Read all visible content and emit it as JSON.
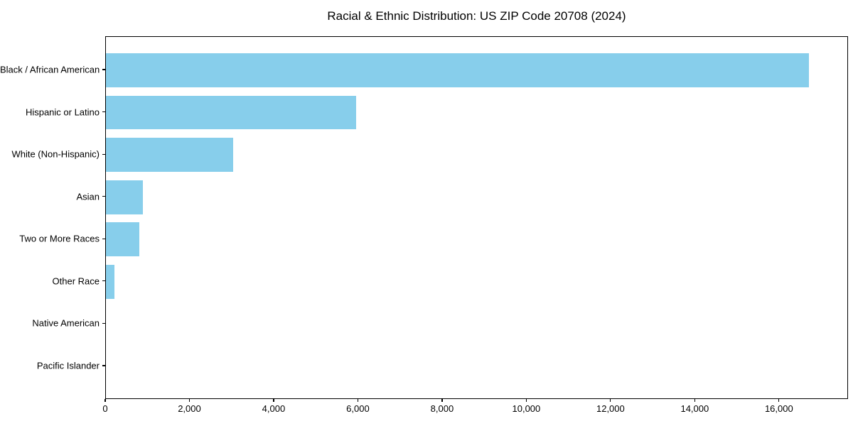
{
  "page": {
    "background": "#ffffff"
  },
  "chart_data": {
    "type": "bar",
    "orientation": "horizontal",
    "title": "Racial & Ethnic Distribution: US ZIP Code 20708 (2024)",
    "xlabel": "",
    "ylabel": "",
    "categories": [
      "Black / African American",
      "Hispanic or Latino",
      "White (Non-Hispanic)",
      "Asian",
      "Two or More Races",
      "Other Race",
      "Native American",
      "Pacific Islander"
    ],
    "values": [
      16700,
      5950,
      3030,
      870,
      800,
      200,
      0,
      0
    ],
    "xlim": [
      0,
      17640
    ],
    "x_ticks": [
      0,
      2000,
      4000,
      6000,
      8000,
      10000,
      12000,
      14000,
      16000
    ],
    "x_tick_labels": [
      "0",
      "2,000",
      "4,000",
      "6,000",
      "8,000",
      "10,000",
      "12,000",
      "14,000",
      "16,000"
    ],
    "bar_color": "#87CEEB",
    "axis_color": "#000000",
    "text_color": "#000000",
    "grid": false,
    "legend": "none"
  }
}
